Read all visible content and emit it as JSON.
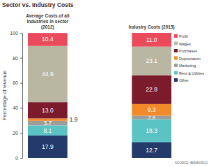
{
  "chart_data": {
    "type": "bar",
    "title": "Sector vs. Industry Costs",
    "y_label": "Percentage of revenue",
    "annotations": [
      "SOURCE: IBISWORLD"
    ],
    "categories": [
      "Average Costs of all Industries in sector (2012)",
      "Industry Costs (2015)"
    ],
    "stacked": true,
    "data_labels": true,
    "legend": "right",
    "ylim": [
      0,
      100
    ],
    "yticks": [
      0,
      20,
      40,
      60,
      80,
      100
    ],
    "series": [
      {
        "name": "Other",
        "color": "#233a6b",
        "values": [
          17.9,
          12.7
        ],
        "value_labels": [
          "17.9",
          "12.7"
        ]
      },
      {
        "name": "Rent & Utilities",
        "color": "#5cc3c4",
        "values": [
          8.1,
          18.3
        ],
        "value_labels": [
          "8.1",
          "18.3"
        ]
      },
      {
        "name": "Marketing",
        "color": "#9d9e99",
        "values": [
          3.7,
          2.8
        ],
        "value_labels": [
          "3.7",
          "2.8"
        ]
      },
      {
        "name": "Depreciation",
        "color": "#f28a2b",
        "values": [
          1.9,
          9.3
        ],
        "value_labels": [
          "1.9",
          "9.3"
        ]
      },
      {
        "name": "Purchases",
        "color": "#7b1b2c",
        "values": [
          13.0,
          22.8
        ],
        "value_labels": [
          "13.0",
          "22.8"
        ]
      },
      {
        "name": "Wages",
        "color": "#b9b6a2",
        "values": [
          44.9,
          23.1
        ],
        "value_labels": [
          "44.9",
          "23.1"
        ]
      },
      {
        "name": "Profit",
        "color": "#ea4a5c",
        "values": [
          10.4,
          11.0
        ],
        "value_labels": [
          "10.4",
          "11.0"
        ]
      }
    ]
  }
}
